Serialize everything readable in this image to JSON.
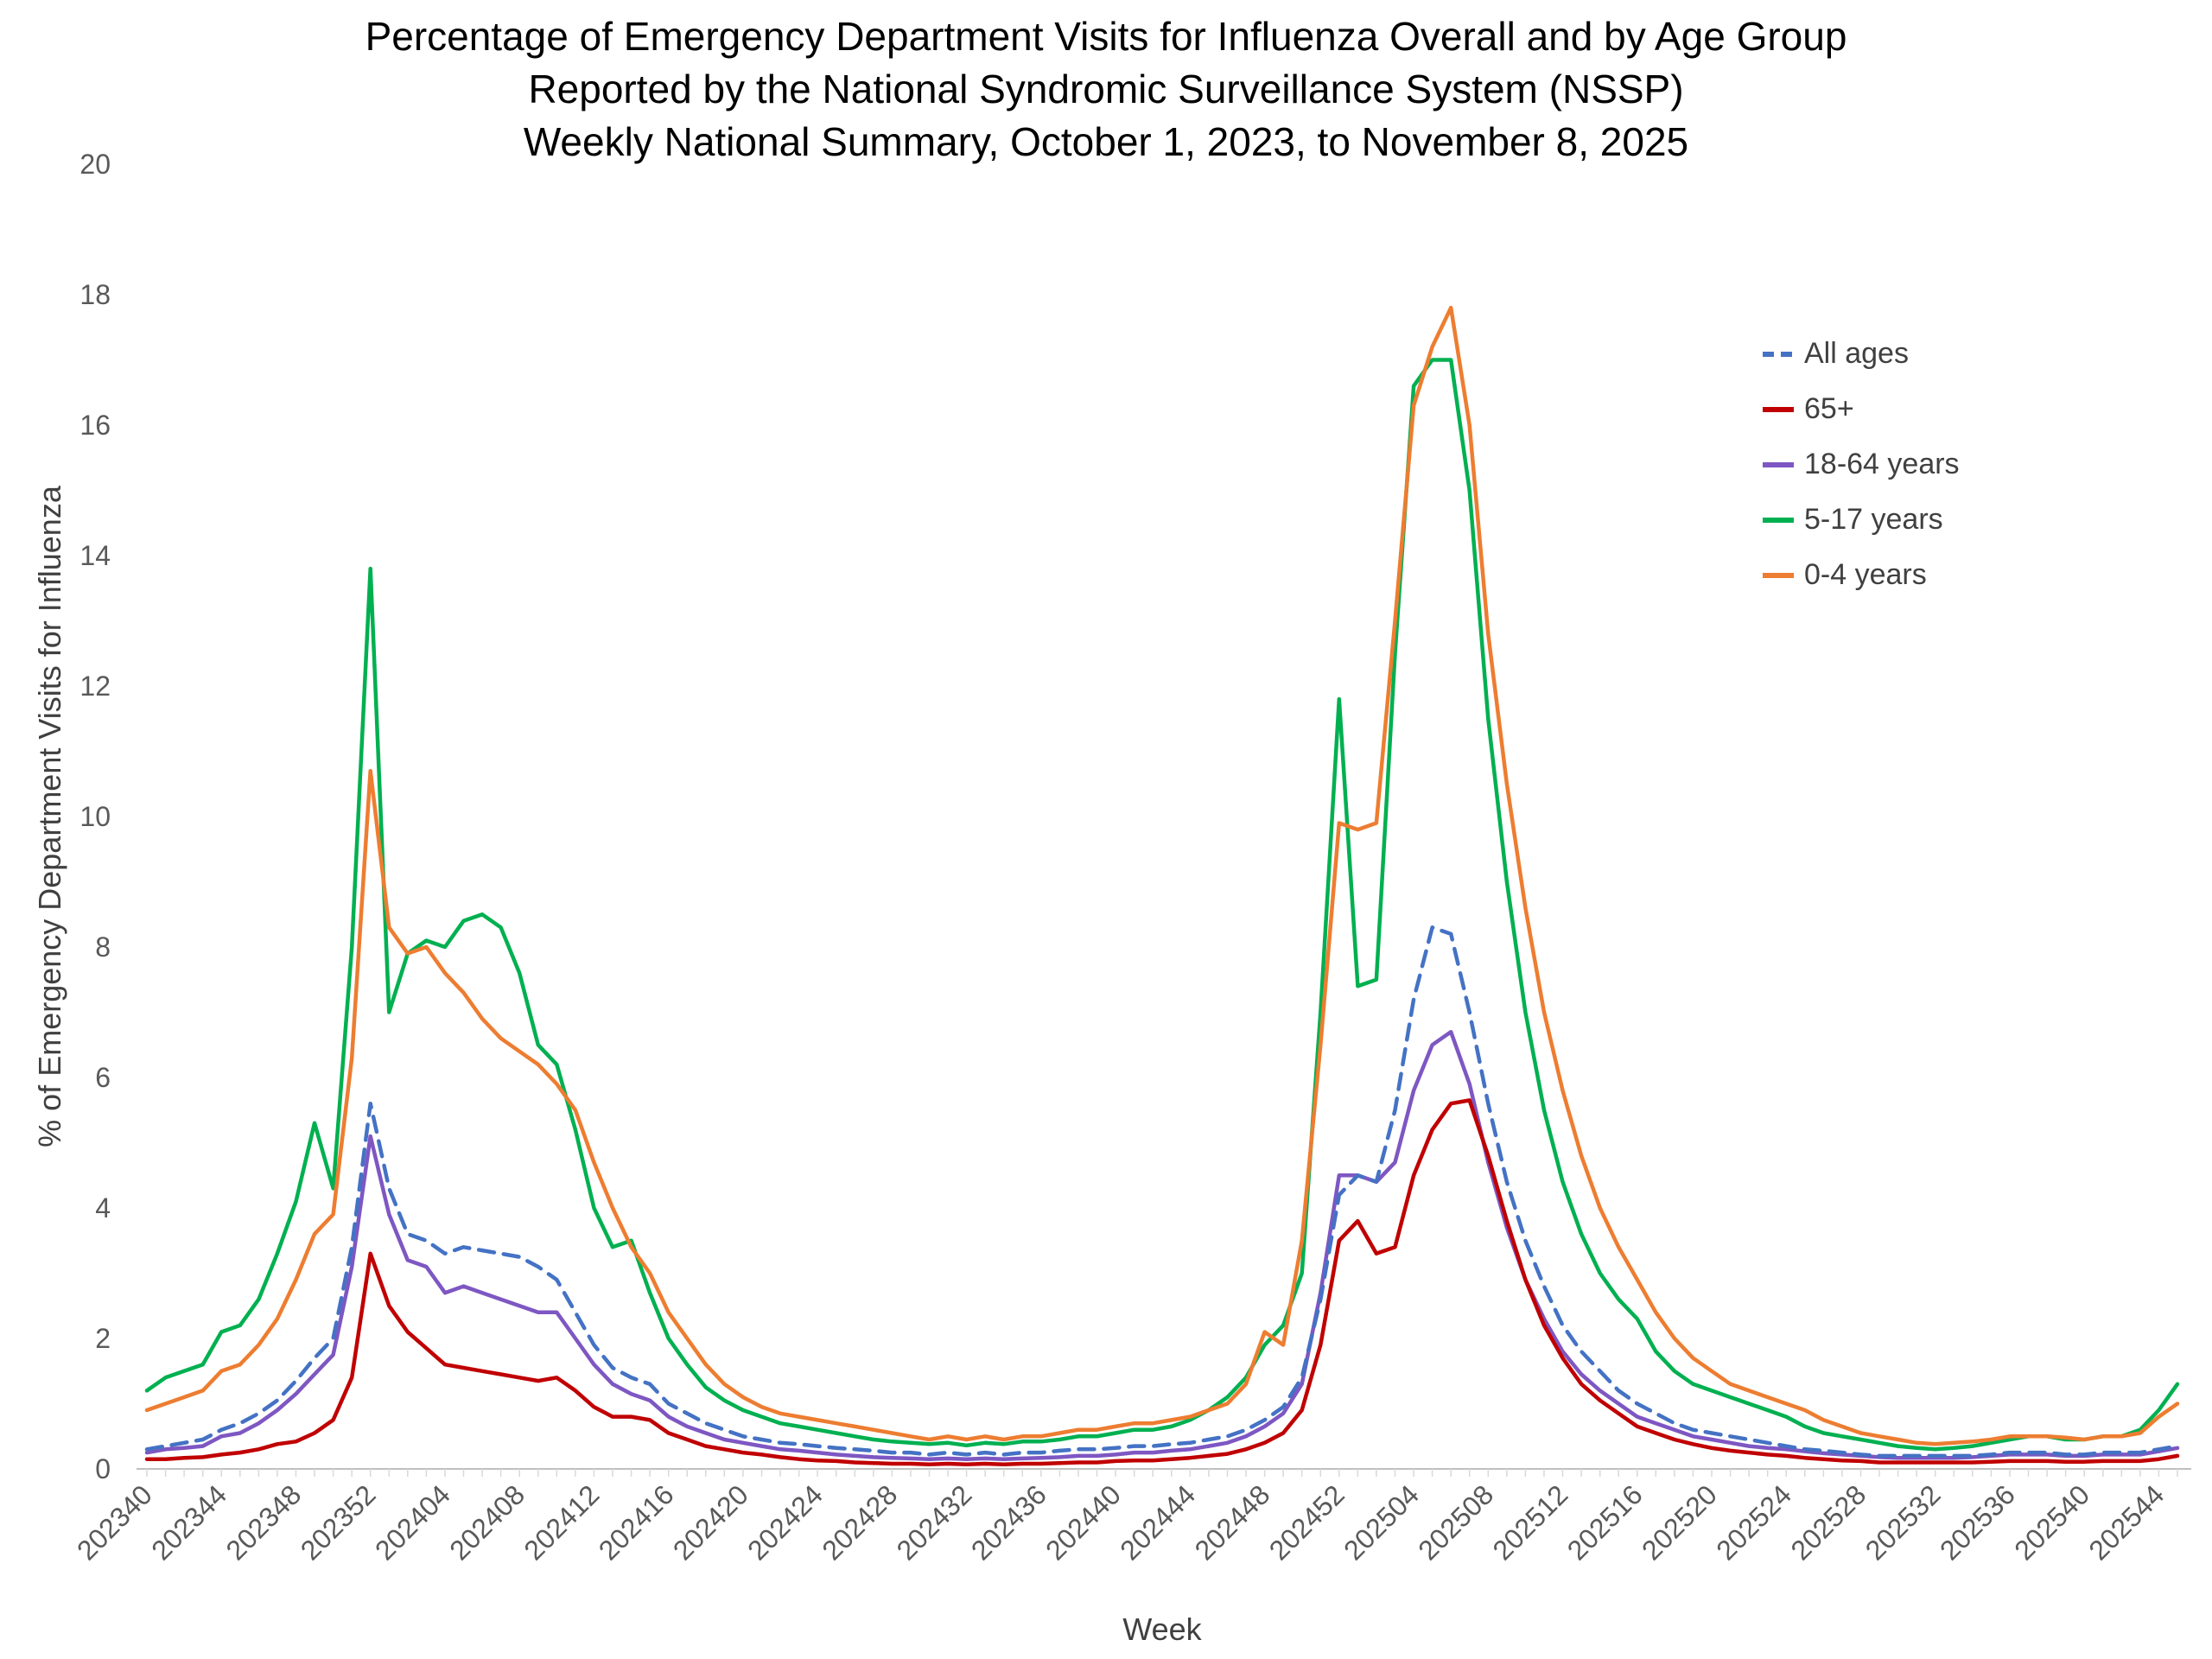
{
  "page": {
    "background": "#FFFFFF"
  },
  "chart_data": {
    "type": "line",
    "title_lines": [
      "Percentage of Emergency Department Visits for Influenza Overall and by Age Group",
      "Reported by the National Syndromic Surveillance System (NSSP)",
      "Weekly National Summary, October 1, 2023, to  November 8, 2025"
    ],
    "ylabel": "% of Emergency Department Visits for Influenza",
    "xlabel": "Week",
    "ylim": [
      0,
      20
    ],
    "y_tick_step": 2,
    "x_label_every": 4,
    "grid": false,
    "legend_position": "right-inside",
    "axis_color": "#BFBFBF",
    "tick_color": "#D9D9D9",
    "x": [
      "202340",
      "202341",
      "202342",
      "202343",
      "202344",
      "202345",
      "202346",
      "202347",
      "202348",
      "202349",
      "202350",
      "202351",
      "202352",
      "202401",
      "202402",
      "202403",
      "202404",
      "202405",
      "202406",
      "202407",
      "202408",
      "202409",
      "202410",
      "202411",
      "202412",
      "202413",
      "202414",
      "202415",
      "202416",
      "202417",
      "202418",
      "202419",
      "202420",
      "202421",
      "202422",
      "202423",
      "202424",
      "202425",
      "202426",
      "202427",
      "202428",
      "202429",
      "202430",
      "202431",
      "202432",
      "202433",
      "202434",
      "202435",
      "202436",
      "202437",
      "202438",
      "202439",
      "202440",
      "202441",
      "202442",
      "202443",
      "202444",
      "202445",
      "202446",
      "202447",
      "202448",
      "202449",
      "202450",
      "202451",
      "202452",
      "202501",
      "202502",
      "202503",
      "202504",
      "202505",
      "202506",
      "202507",
      "202508",
      "202509",
      "202510",
      "202511",
      "202512",
      "202513",
      "202514",
      "202515",
      "202516",
      "202517",
      "202518",
      "202519",
      "202520",
      "202521",
      "202522",
      "202523",
      "202524",
      "202525",
      "202526",
      "202527",
      "202528",
      "202529",
      "202530",
      "202531",
      "202532",
      "202533",
      "202534",
      "202535",
      "202536",
      "202537",
      "202538",
      "202539",
      "202540",
      "202541",
      "202542",
      "202543",
      "202544",
      "202545"
    ],
    "series": [
      {
        "name": "All ages",
        "color": "#4472C4",
        "dashed": true,
        "values": [
          0.3,
          0.35,
          0.4,
          0.45,
          0.6,
          0.7,
          0.85,
          1.05,
          1.35,
          1.7,
          2.0,
          3.4,
          5.6,
          4.3,
          3.6,
          3.5,
          3.3,
          3.4,
          3.35,
          3.3,
          3.25,
          3.1,
          2.9,
          2.4,
          1.9,
          1.55,
          1.4,
          1.3,
          1.0,
          0.85,
          0.7,
          0.6,
          0.5,
          0.45,
          0.4,
          0.38,
          0.35,
          0.32,
          0.3,
          0.28,
          0.25,
          0.25,
          0.22,
          0.25,
          0.22,
          0.25,
          0.22,
          0.25,
          0.25,
          0.28,
          0.3,
          0.3,
          0.32,
          0.35,
          0.35,
          0.38,
          0.4,
          0.45,
          0.5,
          0.6,
          0.75,
          0.95,
          1.4,
          2.6,
          4.2,
          4.5,
          4.4,
          5.5,
          7.2,
          8.3,
          8.2,
          7.0,
          5.6,
          4.4,
          3.5,
          2.8,
          2.2,
          1.8,
          1.5,
          1.2,
          1.0,
          0.85,
          0.7,
          0.6,
          0.55,
          0.5,
          0.45,
          0.4,
          0.35,
          0.3,
          0.28,
          0.25,
          0.22,
          0.2,
          0.2,
          0.2,
          0.2,
          0.2,
          0.2,
          0.22,
          0.25,
          0.25,
          0.25,
          0.22,
          0.22,
          0.25,
          0.25,
          0.25,
          0.3,
          0.35
        ]
      },
      {
        "name": "65+",
        "color": "#C00000",
        "dashed": false,
        "values": [
          0.15,
          0.15,
          0.17,
          0.18,
          0.22,
          0.25,
          0.3,
          0.38,
          0.42,
          0.55,
          0.75,
          1.4,
          3.3,
          2.5,
          2.1,
          1.85,
          1.6,
          1.55,
          1.5,
          1.45,
          1.4,
          1.35,
          1.4,
          1.2,
          0.95,
          0.8,
          0.8,
          0.75,
          0.55,
          0.45,
          0.35,
          0.3,
          0.25,
          0.22,
          0.18,
          0.15,
          0.13,
          0.12,
          0.1,
          0.09,
          0.08,
          0.08,
          0.07,
          0.08,
          0.07,
          0.08,
          0.07,
          0.08,
          0.08,
          0.09,
          0.1,
          0.1,
          0.12,
          0.13,
          0.13,
          0.15,
          0.17,
          0.2,
          0.23,
          0.3,
          0.4,
          0.55,
          0.9,
          1.9,
          3.5,
          3.8,
          3.3,
          3.4,
          4.5,
          5.2,
          5.6,
          5.65,
          4.8,
          3.8,
          2.9,
          2.2,
          1.7,
          1.3,
          1.05,
          0.85,
          0.65,
          0.55,
          0.45,
          0.38,
          0.32,
          0.28,
          0.25,
          0.22,
          0.2,
          0.17,
          0.15,
          0.13,
          0.12,
          0.1,
          0.1,
          0.1,
          0.1,
          0.1,
          0.1,
          0.11,
          0.12,
          0.12,
          0.12,
          0.11,
          0.11,
          0.12,
          0.12,
          0.12,
          0.15,
          0.2
        ]
      },
      {
        "name": "18-64 years",
        "color": "#7E57C2",
        "dashed": false,
        "values": [
          0.25,
          0.3,
          0.32,
          0.35,
          0.5,
          0.55,
          0.7,
          0.9,
          1.15,
          1.45,
          1.75,
          3.1,
          5.1,
          3.9,
          3.2,
          3.1,
          2.7,
          2.8,
          2.7,
          2.6,
          2.5,
          2.4,
          2.4,
          2.0,
          1.6,
          1.3,
          1.15,
          1.05,
          0.8,
          0.65,
          0.55,
          0.45,
          0.4,
          0.35,
          0.3,
          0.28,
          0.25,
          0.22,
          0.2,
          0.18,
          0.17,
          0.16,
          0.15,
          0.16,
          0.15,
          0.16,
          0.15,
          0.16,
          0.17,
          0.18,
          0.2,
          0.2,
          0.22,
          0.25,
          0.25,
          0.28,
          0.3,
          0.35,
          0.4,
          0.5,
          0.65,
          0.85,
          1.3,
          2.7,
          4.5,
          4.5,
          4.4,
          4.7,
          5.8,
          6.5,
          6.7,
          5.9,
          4.7,
          3.7,
          2.9,
          2.3,
          1.8,
          1.45,
          1.2,
          1.0,
          0.8,
          0.7,
          0.6,
          0.5,
          0.45,
          0.4,
          0.35,
          0.32,
          0.3,
          0.27,
          0.24,
          0.22,
          0.2,
          0.18,
          0.17,
          0.17,
          0.17,
          0.17,
          0.18,
          0.2,
          0.22,
          0.22,
          0.22,
          0.2,
          0.2,
          0.22,
          0.22,
          0.22,
          0.27,
          0.32
        ]
      },
      {
        "name": "5-17 years",
        "color": "#00B050",
        "dashed": false,
        "values": [
          1.2,
          1.4,
          1.5,
          1.6,
          2.1,
          2.2,
          2.6,
          3.3,
          4.1,
          5.3,
          4.3,
          8.0,
          13.8,
          7.0,
          7.9,
          8.1,
          8.0,
          8.4,
          8.5,
          8.3,
          7.6,
          6.5,
          6.2,
          5.2,
          4.0,
          3.4,
          3.5,
          2.7,
          2.0,
          1.6,
          1.25,
          1.05,
          0.9,
          0.8,
          0.7,
          0.65,
          0.6,
          0.55,
          0.5,
          0.45,
          0.42,
          0.4,
          0.38,
          0.4,
          0.36,
          0.4,
          0.38,
          0.42,
          0.42,
          0.45,
          0.5,
          0.5,
          0.55,
          0.6,
          0.6,
          0.65,
          0.75,
          0.9,
          1.1,
          1.4,
          1.9,
          2.2,
          3.0,
          7.0,
          11.8,
          7.4,
          7.5,
          12.5,
          16.6,
          17.0,
          17.0,
          15.0,
          11.5,
          9.0,
          7.0,
          5.5,
          4.4,
          3.6,
          3.0,
          2.6,
          2.3,
          1.8,
          1.5,
          1.3,
          1.2,
          1.1,
          1.0,
          0.9,
          0.8,
          0.65,
          0.55,
          0.5,
          0.45,
          0.4,
          0.35,
          0.32,
          0.3,
          0.32,
          0.35,
          0.4,
          0.45,
          0.5,
          0.5,
          0.45,
          0.45,
          0.5,
          0.5,
          0.6,
          0.9,
          1.3
        ]
      },
      {
        "name": "0-4 years",
        "color": "#ED7D31",
        "dashed": false,
        "values": [
          0.9,
          1.0,
          1.1,
          1.2,
          1.5,
          1.6,
          1.9,
          2.3,
          2.9,
          3.6,
          3.9,
          6.3,
          10.7,
          8.3,
          7.9,
          8.0,
          7.6,
          7.3,
          6.9,
          6.6,
          6.4,
          6.2,
          5.9,
          5.5,
          4.7,
          4.0,
          3.4,
          3.0,
          2.4,
          2.0,
          1.6,
          1.3,
          1.1,
          0.95,
          0.85,
          0.8,
          0.75,
          0.7,
          0.65,
          0.6,
          0.55,
          0.5,
          0.45,
          0.5,
          0.45,
          0.5,
          0.45,
          0.5,
          0.5,
          0.55,
          0.6,
          0.6,
          0.65,
          0.7,
          0.7,
          0.75,
          0.8,
          0.9,
          1.0,
          1.3,
          2.1,
          1.9,
          3.5,
          6.5,
          9.9,
          9.8,
          9.9,
          13.0,
          16.3,
          17.2,
          17.8,
          16.0,
          12.8,
          10.5,
          8.6,
          7.0,
          5.8,
          4.8,
          4.0,
          3.4,
          2.9,
          2.4,
          2.0,
          1.7,
          1.5,
          1.3,
          1.2,
          1.1,
          1.0,
          0.9,
          0.75,
          0.65,
          0.55,
          0.5,
          0.45,
          0.4,
          0.38,
          0.4,
          0.42,
          0.45,
          0.5,
          0.5,
          0.5,
          0.48,
          0.45,
          0.5,
          0.5,
          0.55,
          0.8,
          1.0
        ]
      }
    ]
  }
}
